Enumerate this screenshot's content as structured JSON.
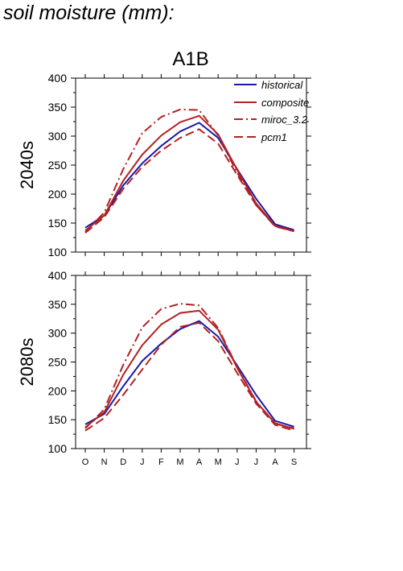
{
  "page": {
    "title": "soil moisture (mm):"
  },
  "colors": {
    "historical": "#1a1aa8",
    "composite": "#b22222",
    "miroc_3.2": "#b22222",
    "pcm1": "#b22222"
  },
  "chart_data": {
    "type": "line",
    "title": "A1B",
    "categories": [
      "O",
      "N",
      "D",
      "J",
      "F",
      "M",
      "A",
      "M",
      "J",
      "J",
      "A",
      "S"
    ],
    "ylim": [
      100,
      400
    ],
    "yticks": [
      "100",
      "150",
      "200",
      "250",
      "300",
      "350",
      "400"
    ],
    "legend_position": "top-right",
    "legend": [
      "historical",
      "composite",
      "miroc_3.2",
      "pcm1"
    ],
    "panels": [
      {
        "label": "2040s",
        "series": [
          {
            "name": "historical",
            "style": "solid",
            "color": "#1a1aa8",
            "values": [
              142,
              163,
              215,
              253,
              283,
              308,
              323,
              297,
              243,
              192,
              148,
              138
            ]
          },
          {
            "name": "composite",
            "style": "solid",
            "color": "#b22222",
            "values": [
              137,
              163,
              223,
              268,
              301,
              324,
              335,
              303,
              242,
              184,
              145,
              136
            ]
          },
          {
            "name": "miroc_3.2",
            "style": "dashdot",
            "color": "#b22222",
            "values": [
              135,
              168,
              243,
              305,
              333,
              346,
              345,
              301,
              237,
              181,
              145,
              137
            ]
          },
          {
            "name": "pcm1",
            "style": "dashed",
            "color": "#b22222",
            "values": [
              133,
              160,
              209,
              247,
              275,
              297,
              312,
              287,
              233,
              181,
              144,
              136
            ]
          }
        ]
      },
      {
        "label": "2080s",
        "series": [
          {
            "name": "historical",
            "style": "solid",
            "color": "#1a1aa8",
            "values": [
              142,
              160,
              208,
              252,
              282,
              307,
              321,
              294,
              244,
              193,
              148,
              138
            ]
          },
          {
            "name": "composite",
            "style": "solid",
            "color": "#b22222",
            "values": [
              137,
              163,
              228,
              279,
              315,
              335,
              339,
              306,
              240,
              181,
              144,
              134
            ]
          },
          {
            "name": "miroc_3.2",
            "style": "dashdot",
            "color": "#b22222",
            "values": [
              135,
              168,
              245,
              310,
              342,
              351,
              348,
              309,
              241,
              182,
              143,
              135
            ]
          },
          {
            "name": "pcm1",
            "style": "dashed",
            "color": "#b22222",
            "values": [
              131,
              153,
              193,
              237,
              280,
              311,
              318,
              286,
              231,
              178,
              141,
              131
            ]
          }
        ]
      }
    ]
  }
}
